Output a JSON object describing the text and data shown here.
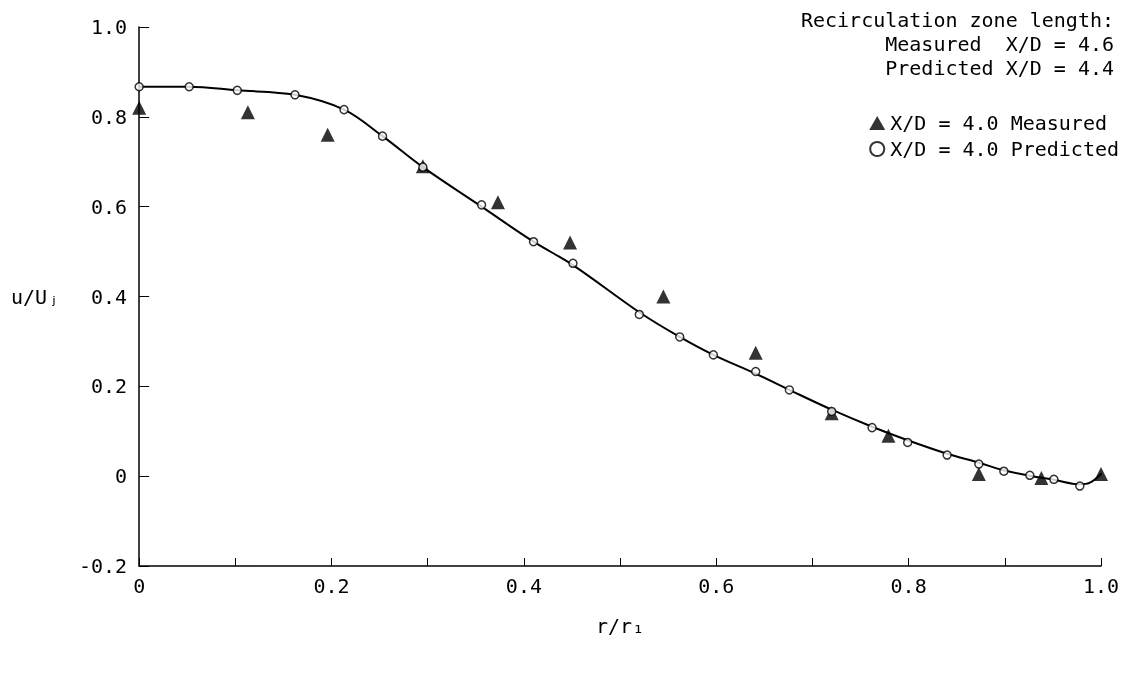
{
  "chart_data": {
    "type": "scatter",
    "xlabel": "r/r₁",
    "ylabel": "u/Uⱼ",
    "annotations": [
      "Recirculation zone length:",
      "  Measured  X/D = 4.6",
      "  Predicted X/D = 4.4"
    ],
    "xlim": [
      0,
      1
    ],
    "xticks": [
      0,
      {
        "value": 0.1,
        "label": null
      },
      0.2,
      {
        "value": 0.3,
        "label": null
      },
      0.4,
      {
        "value": 0.5,
        "label": null
      },
      0.6,
      {
        "value": 0.7,
        "label": null
      },
      0.8,
      {
        "value": 0.9,
        "label": null
      },
      {
        "value": 1,
        "label": "1.0"
      }
    ],
    "ylim": [
      -0.2,
      1
    ],
    "yticks": [
      -0.2,
      0,
      0.2,
      0.4,
      0.6,
      0.8,
      {
        "value": 1,
        "label": "1.0"
      }
    ],
    "grid": false,
    "legend": "top right",
    "series": [
      {
        "name": "X/D = 4.0 Measured",
        "type": "scatter",
        "marker": "triangle",
        "color": "#000000",
        "x": [
          0,
          0.113,
          0.196,
          0.295,
          0.373,
          0.448,
          0.545,
          0.641,
          0.72,
          0.779,
          0.873,
          0.938,
          1.0
        ],
        "values": [
          0.82,
          0.81,
          0.76,
          0.69,
          0.61,
          0.52,
          0.4,
          0.275,
          0.14,
          0.09,
          0.005,
          -0.004,
          0.005
        ]
      },
      {
        "name": "X/D = 4.0 Predicted",
        "type": "scatter",
        "marker": "circle",
        "color": "#000000",
        "x": [
          0,
          0.052,
          0.102,
          0.162,
          0.213,
          0.253,
          0.295,
          0.356,
          0.41,
          0.451,
          0.52,
          0.562,
          0.597,
          0.641,
          0.676,
          0.72,
          0.762,
          0.799,
          0.84,
          0.873,
          0.899,
          0.926,
          0.951,
          0.978
        ],
        "values": [
          0.867,
          0.867,
          0.859,
          0.849,
          0.816,
          0.757,
          0.688,
          0.604,
          0.522,
          0.474,
          0.36,
          0.31,
          0.27,
          0.233,
          0.192,
          0.144,
          0.108,
          0.075,
          0.047,
          0.027,
          0.011,
          0.002,
          -0.007,
          -0.022
        ]
      },
      {
        "type": "line",
        "marker": "none",
        "line_style": "solid",
        "color": "#000000",
        "x": [
          0,
          0.052,
          0.102,
          0.162,
          0.213,
          0.253,
          0.295,
          0.356,
          0.41,
          0.451,
          0.52,
          0.562,
          0.597,
          0.641,
          0.676,
          0.72,
          0.762,
          0.799,
          0.84,
          0.873,
          0.899,
          0.926,
          0.951,
          0.978,
          0.988,
          1.0
        ],
        "values": [
          0.867,
          0.867,
          0.859,
          0.849,
          0.816,
          0.757,
          0.688,
          0.6,
          0.522,
          0.47,
          0.365,
          0.31,
          0.27,
          0.228,
          0.192,
          0.148,
          0.11,
          0.08,
          0.05,
          0.03,
          0.013,
          0.001,
          -0.008,
          -0.018,
          -0.015,
          0.005
        ]
      }
    ]
  }
}
